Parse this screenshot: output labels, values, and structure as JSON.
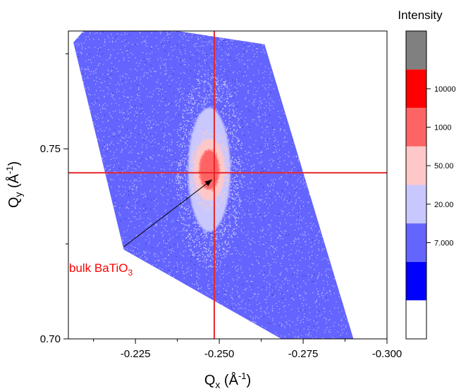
{
  "chart_data": {
    "type": "heatmap",
    "xlabel_main": "Q",
    "xlabel_sub": "x",
    "xlabel_unit": " (Å",
    "xlabel_sup": "-1",
    "xlabel_close": ")",
    "ylabel_main": "Q",
    "ylabel_sub": "y",
    "ylabel_unit": " (Å",
    "ylabel_sup": "-1",
    "ylabel_close": ")",
    "xlim": [
      -0.205,
      -0.3
    ],
    "ylim": [
      0.7,
      0.781
    ],
    "x_ticks": [
      {
        "value": -0.225,
        "label": "-0.225"
      },
      {
        "value": -0.25,
        "label": "-0.250"
      },
      {
        "value": -0.275,
        "label": "-0.275"
      },
      {
        "value": -0.3,
        "label": "-0.300"
      }
    ],
    "y_ticks": [
      {
        "value": 0.7,
        "label": "0.70"
      },
      {
        "value": 0.75,
        "label": "0.75"
      }
    ],
    "crosshair": {
      "x": -0.2485,
      "y": 0.7437,
      "color": "#e8262b"
    },
    "data_region": [
      [
        -0.2095,
        0.781
      ],
      [
        -0.2375,
        0.781
      ],
      [
        -0.2635,
        0.7775
      ],
      [
        -0.29,
        0.7
      ],
      [
        -0.2685,
        0.7
      ],
      [
        -0.2215,
        0.7235
      ],
      [
        -0.2065,
        0.778
      ]
    ],
    "peak": {
      "x": -0.247,
      "y": 0.7445,
      "label_main": "bulk BaTiO",
      "label_sub": "3",
      "label_color": "#ff0000",
      "label_x": -0.2054,
      "label_y": 0.7245
    },
    "colorbar": {
      "title": "Intensity",
      "colors_top_to_bottom": [
        "#808080",
        "#ff0000",
        "#ff6464",
        "#ffc8c8",
        "#c8c8ff",
        "#6464ff",
        "#0000ff",
        "#ffffff"
      ],
      "labels": [
        "10000",
        "1000",
        "50.00",
        "20.00",
        "7.000"
      ]
    },
    "colors": {
      "background_level": "#6464ff",
      "low_level": "#c8c8ff",
      "mid_level": "#ffc8c8",
      "high_level": "#ff6464",
      "dark_speck": "#1a1a6e"
    }
  }
}
